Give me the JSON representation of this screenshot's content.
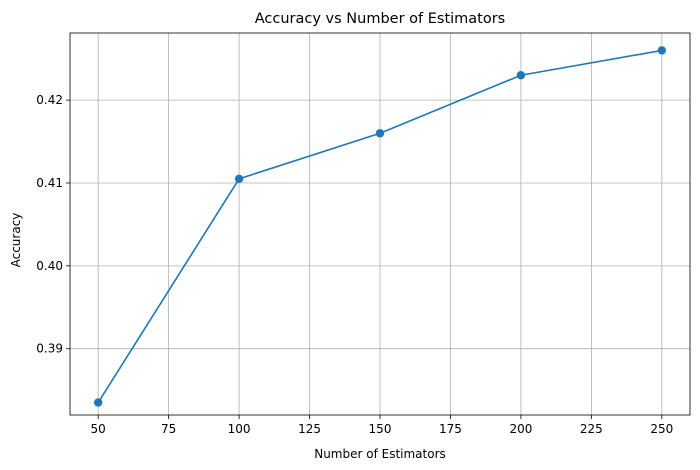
{
  "chart_data": {
    "type": "line",
    "title": "Accuracy vs Number of Estimators",
    "xlabel": "Number of Estimators",
    "ylabel": "Accuracy",
    "xlim": [
      40,
      260
    ],
    "ylim": [
      0.382,
      0.4281
    ],
    "xticks": [
      50,
      75,
      100,
      125,
      150,
      175,
      200,
      225,
      250
    ],
    "yticks": [
      0.39,
      0.4,
      0.41,
      0.42
    ],
    "ytick_labels": [
      "0.39",
      "0.40",
      "0.41",
      "0.42"
    ],
    "grid": true,
    "series": [
      {
        "x": [
          50,
          100,
          150,
          200,
          250
        ],
        "values": [
          0.3835,
          0.4105,
          0.416,
          0.423,
          0.426
        ],
        "color": "#1f77b4",
        "marker": "circle"
      }
    ]
  }
}
